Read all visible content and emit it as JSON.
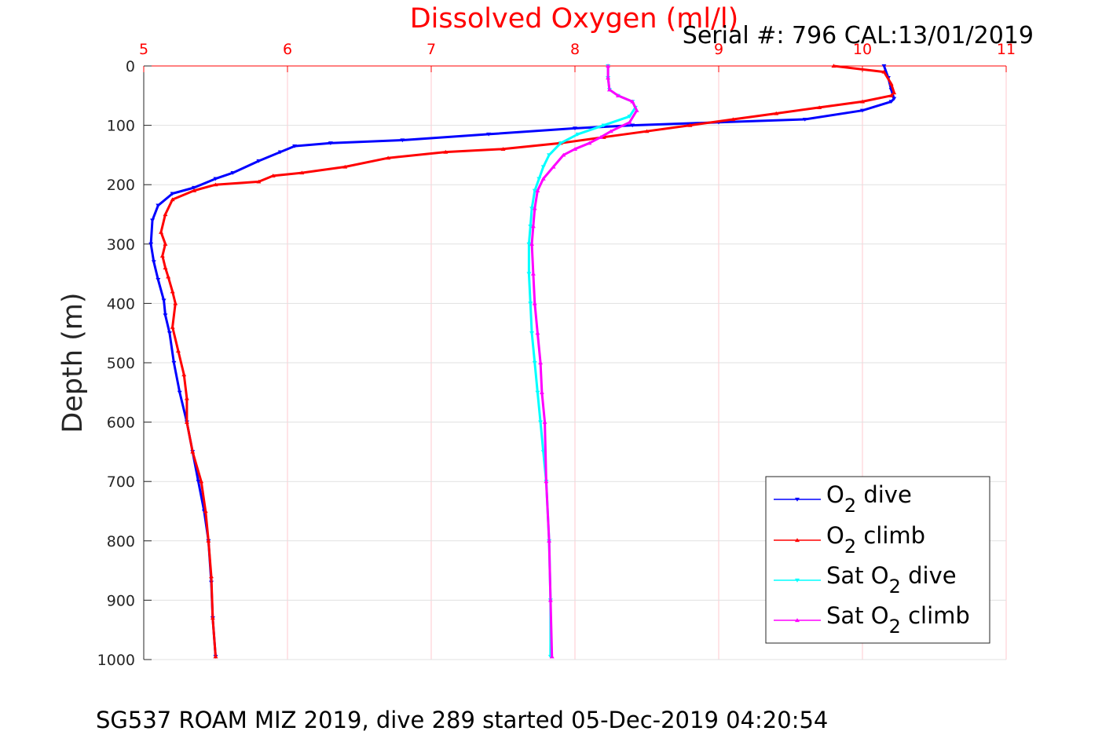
{
  "chart_data": {
    "type": "line",
    "title": "Dissolved Oxygen (ml/l)",
    "serial_label": "Serial #: 796  CAL:13/01/2019",
    "caption": "SG537 ROAM MIZ 2019, dive 289 started 05-Dec-2019 04:20:54",
    "ylabel": "Depth (m)",
    "xlabel": "",
    "xlim": [
      5,
      11
    ],
    "ylim": [
      0,
      1000
    ],
    "y_reversed": true,
    "x_axis_position": "top",
    "x_ticks": [
      "5",
      "6",
      "7",
      "8",
      "9",
      "10",
      "11"
    ],
    "y_ticks": [
      "0",
      "100",
      "200",
      "300",
      "400",
      "500",
      "600",
      "700",
      "800",
      "900",
      "1000"
    ],
    "grid": true,
    "legend_position": "bottom-right",
    "series": [
      {
        "name": "O2 dive",
        "legend_main": "O",
        "legend_sub": "2",
        "legend_prefix": "",
        "legend_suffix": " dive",
        "color": "#0000ff",
        "marker": "triangle-down",
        "x": [
          10.15,
          10.18,
          10.2,
          10.22,
          10.2,
          10.0,
          9.6,
          9.0,
          8.4,
          8.0,
          7.4,
          6.8,
          6.3,
          6.05,
          5.95,
          5.8,
          5.62,
          5.5,
          5.35,
          5.2,
          5.1,
          5.06,
          5.05,
          5.07,
          5.1,
          5.14,
          5.15,
          5.18,
          5.21,
          5.25,
          5.3,
          5.34,
          5.38,
          5.42,
          5.45,
          5.47,
          5.48,
          5.5
        ],
        "y": [
          0,
          20,
          40,
          55,
          60,
          75,
          90,
          95,
          100,
          105,
          115,
          125,
          130,
          135,
          145,
          160,
          180,
          190,
          205,
          215,
          235,
          260,
          300,
          330,
          360,
          395,
          420,
          450,
          500,
          550,
          600,
          650,
          700,
          750,
          800,
          870,
          930,
          995
        ]
      },
      {
        "name": "O2 climb",
        "legend_main": "O",
        "legend_sub": "2",
        "legend_prefix": "",
        "legend_suffix": " climb",
        "color": "#ff0000",
        "marker": "triangle-up",
        "x": [
          9.8,
          10.15,
          10.2,
          10.22,
          10.2,
          10.0,
          9.7,
          9.4,
          9.1,
          8.8,
          8.5,
          8.2,
          7.9,
          7.5,
          7.1,
          6.7,
          6.4,
          6.1,
          5.9,
          5.8,
          5.5,
          5.35,
          5.2,
          5.15,
          5.12,
          5.15,
          5.13,
          5.15,
          5.17,
          5.2,
          5.22,
          5.2,
          5.24,
          5.28,
          5.3,
          5.3,
          5.34,
          5.4,
          5.43,
          5.45,
          5.47,
          5.48,
          5.5
        ],
        "y": [
          0,
          10,
          30,
          45,
          50,
          60,
          70,
          80,
          90,
          100,
          110,
          120,
          130,
          140,
          145,
          155,
          170,
          180,
          185,
          195,
          200,
          210,
          225,
          250,
          280,
          300,
          320,
          340,
          355,
          380,
          400,
          440,
          480,
          520,
          560,
          600,
          650,
          700,
          750,
          800,
          860,
          930,
          995
        ]
      },
      {
        "name": "Sat O2 dive",
        "legend_main": "O",
        "legend_sub": "2",
        "legend_prefix": "Sat ",
        "legend_suffix": " dive",
        "color": "#00ffff",
        "marker": "triangle-down",
        "x": [
          8.23,
          8.23,
          8.24,
          8.3,
          8.4,
          8.42,
          8.38,
          8.2,
          8.02,
          7.9,
          7.82,
          7.78,
          7.75,
          7.72,
          7.7,
          7.69,
          7.68,
          7.68,
          7.69,
          7.7,
          7.72,
          7.74,
          7.76,
          7.78,
          7.8,
          7.82,
          7.83,
          7.83
        ],
        "y": [
          0,
          20,
          40,
          50,
          60,
          70,
          85,
          100,
          115,
          130,
          150,
          170,
          190,
          210,
          240,
          270,
          300,
          350,
          400,
          450,
          500,
          550,
          600,
          650,
          700,
          800,
          900,
          995
        ]
      },
      {
        "name": "Sat O2 climb",
        "legend_main": "O",
        "legend_sub": "2",
        "legend_prefix": "Sat ",
        "legend_suffix": " climb",
        "color": "#ff00ff",
        "marker": "triangle-up",
        "x": [
          8.23,
          8.23,
          8.24,
          8.3,
          8.4,
          8.43,
          8.38,
          8.25,
          8.18,
          8.1,
          8.0,
          7.92,
          7.85,
          7.78,
          7.74,
          7.72,
          7.71,
          7.7,
          7.71,
          7.72,
          7.74,
          7.76,
          7.77,
          7.79,
          7.8,
          7.82,
          7.83,
          7.84
        ],
        "y": [
          0,
          20,
          40,
          50,
          60,
          75,
          95,
          110,
          120,
          130,
          140,
          150,
          170,
          190,
          210,
          240,
          270,
          300,
          350,
          400,
          450,
          500,
          550,
          600,
          700,
          800,
          900,
          995
        ]
      }
    ]
  }
}
